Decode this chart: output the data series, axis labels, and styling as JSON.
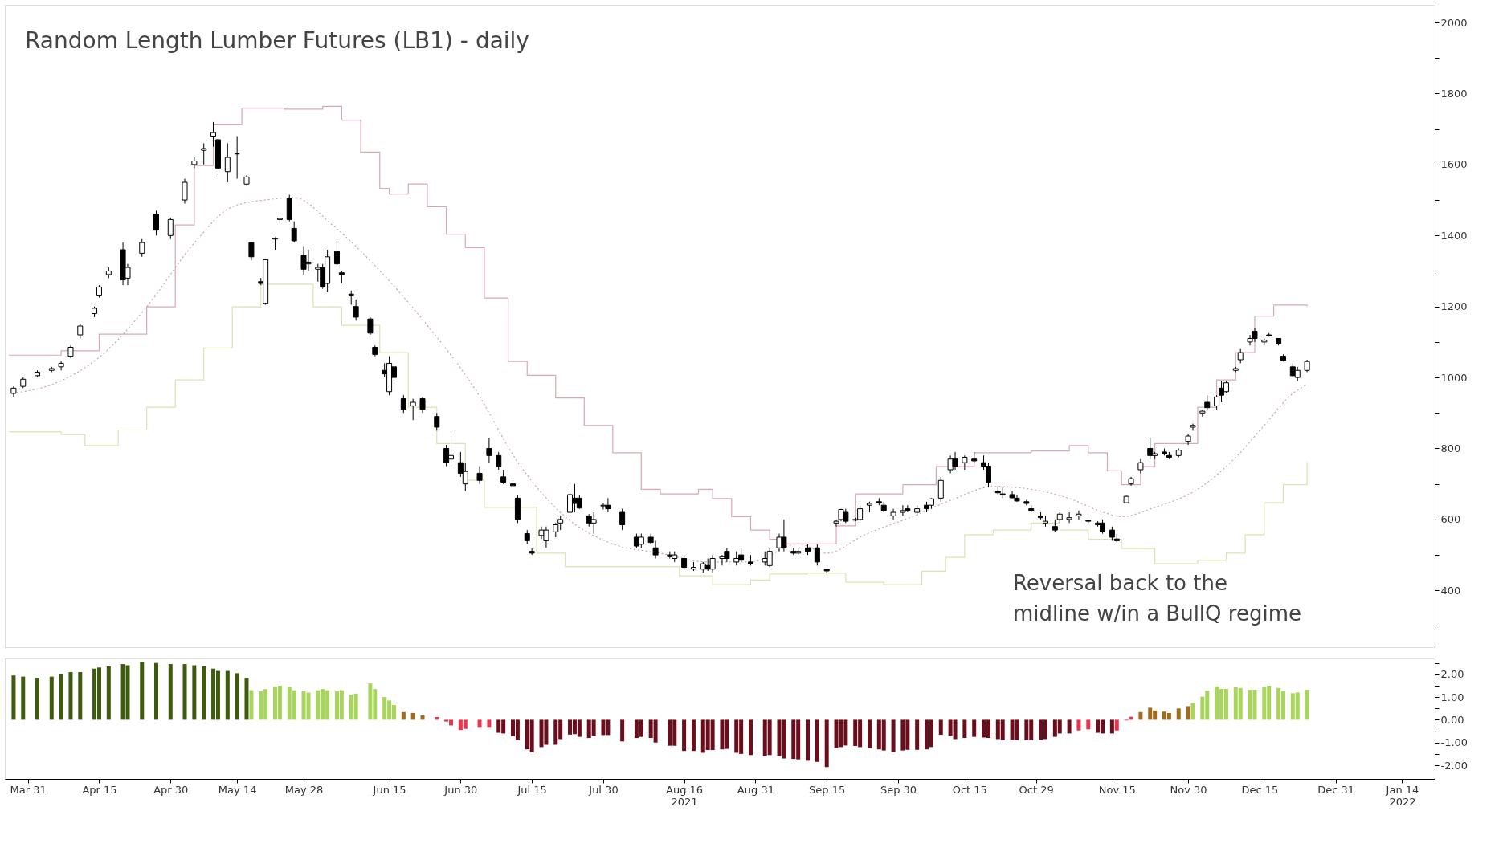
{
  "chart_data": [
    {
      "type": "candlestick",
      "title": "Random Length Lumber Futures (LB1) - daily",
      "annotations": [
        "Reversal back to the\nmidline w/in a BullQ regime"
      ],
      "x": [
        "2021-03-28",
        "2021-03-30",
        "2021-04-02",
        "2021-04-05",
        "2021-04-07",
        "2021-04-09",
        "2021-04-11",
        "2021-04-14",
        "2021-04-15",
        "2021-04-17",
        "2021-04-20",
        "2021-04-21",
        "2021-04-24",
        "2021-04-27",
        "2021-04-30",
        "2021-05-03",
        "2021-05-05",
        "2021-05-07",
        "2021-05-09",
        "2021-05-10",
        "2021-05-12",
        "2021-05-14",
        "2021-05-16",
        "2021-05-17",
        "2021-05-19",
        "2021-05-20",
        "2021-05-22",
        "2021-05-23",
        "2021-05-25",
        "2021-05-26",
        "2021-05-28",
        "2021-05-29",
        "2021-05-31",
        "2021-06-01",
        "2021-06-02",
        "2021-06-04",
        "2021-06-05",
        "2021-06-07",
        "2021-06-08",
        "2021-06-11",
        "2021-06-12",
        "2021-06-14",
        "2021-06-15",
        "2021-06-16",
        "2021-06-18",
        "2021-06-20",
        "2021-06-22",
        "2021-06-25",
        "2021-06-27",
        "2021-06-28",
        "2021-06-30",
        "2021-07-01",
        "2021-07-04",
        "2021-07-06",
        "2021-07-08",
        "2021-07-09",
        "2021-07-11",
        "2021-07-12",
        "2021-07-14",
        "2021-07-15",
        "2021-07-17",
        "2021-07-18",
        "2021-07-20",
        "2021-07-21",
        "2021-07-23",
        "2021-07-24",
        "2021-07-25",
        "2021-07-27",
        "2021-07-28",
        "2021-07-30",
        "2021-07-31",
        "2021-08-03",
        "2021-08-06",
        "2021-08-07",
        "2021-08-09",
        "2021-08-10",
        "2021-08-13",
        "2021-08-14",
        "2021-08-16",
        "2021-08-18",
        "2021-08-20",
        "2021-08-21",
        "2021-08-22",
        "2021-08-24",
        "2021-08-25",
        "2021-08-27",
        "2021-08-28",
        "2021-08-30",
        "2021-09-02",
        "2021-09-03",
        "2021-09-05",
        "2021-09-06",
        "2021-09-08",
        "2021-09-09",
        "2021-09-11",
        "2021-09-13",
        "2021-09-15",
        "2021-09-17",
        "2021-09-18",
        "2021-09-19",
        "2021-09-21",
        "2021-09-22",
        "2021-09-24",
        "2021-09-26",
        "2021-09-27",
        "2021-09-29",
        "2021-10-01",
        "2021-10-02",
        "2021-10-04",
        "2021-10-06",
        "2021-10-07",
        "2021-10-09",
        "2021-10-11",
        "2021-10-12",
        "2021-10-14",
        "2021-10-16",
        "2021-10-18",
        "2021-10-19",
        "2021-10-21",
        "2021-10-22",
        "2021-10-24",
        "2021-10-25",
        "2021-10-27",
        "2021-10-28",
        "2021-10-30",
        "2021-10-31",
        "2021-11-02",
        "2021-11-03",
        "2021-11-05",
        "2021-11-07",
        "2021-11-09",
        "2021-11-11",
        "2021-11-12",
        "2021-11-14",
        "2021-11-15",
        "2021-11-17",
        "2021-11-18",
        "2021-11-20",
        "2021-11-22",
        "2021-11-23",
        "2021-11-25",
        "2021-11-26",
        "2021-11-28",
        "2021-11-30",
        "2021-12-01",
        "2021-12-03",
        "2021-12-04",
        "2021-12-06",
        "2021-12-07",
        "2021-12-08",
        "2021-12-10",
        "2021-12-11",
        "2021-12-13",
        "2021-12-14",
        "2021-12-16",
        "2021-12-17",
        "2021-12-19",
        "2021-12-20",
        "2021-12-22",
        "2021-12-23",
        "2021-12-25"
      ],
      "ohlc": [
        [
          955,
          975,
          945,
          970
        ],
        [
          975,
          1000,
          970,
          995
        ],
        [
          1005,
          1020,
          1000,
          1015
        ],
        [
          1020,
          1030,
          1015,
          1025
        ],
        [
          1030,
          1045,
          1020,
          1040
        ],
        [
          1060,
          1090,
          1055,
          1085
        ],
        [
          1120,
          1150,
          1110,
          1145
        ],
        [
          1180,
          1200,
          1170,
          1195
        ],
        [
          1230,
          1260,
          1225,
          1255
        ],
        [
          1290,
          1310,
          1280,
          1300
        ],
        [
          1360,
          1380,
          1260,
          1275
        ],
        [
          1280,
          1320,
          1260,
          1310
        ],
        [
          1350,
          1390,
          1340,
          1380
        ],
        [
          1460,
          1470,
          1400,
          1415
        ],
        [
          1400,
          1450,
          1390,
          1445
        ],
        [
          1500,
          1560,
          1490,
          1550
        ],
        [
          1600,
          1620,
          1590,
          1610
        ],
        [
          1640,
          1660,
          1600,
          1645
        ],
        [
          1680,
          1720,
          1650,
          1690
        ],
        [
          1670,
          1680,
          1570,
          1590
        ],
        [
          1580,
          1660,
          1550,
          1620
        ],
        [
          1630,
          1680,
          1560,
          1630
        ],
        [
          1545,
          1570,
          1540,
          1565
        ],
        [
          1380,
          1380,
          1330,
          1340
        ],
        [
          1270,
          1280,
          1260,
          1265
        ],
        [
          1209,
          1335,
          1205,
          1332
        ],
        [
          1390,
          1395,
          1360,
          1392
        ],
        [
          1445,
          1450,
          1435,
          1448
        ],
        [
          1505,
          1515,
          1440,
          1445
        ],
        [
          1420,
          1440,
          1380,
          1385
        ],
        [
          1345,
          1370,
          1290,
          1305
        ],
        [
          1320,
          1360,
          1300,
          1325
        ],
        [
          1305,
          1320,
          1270,
          1310
        ],
        [
          1310,
          1320,
          1250,
          1255
        ],
        [
          1265,
          1360,
          1240,
          1340
        ],
        [
          1355,
          1385,
          1310,
          1320
        ],
        [
          1295,
          1300,
          1265,
          1290
        ],
        [
          1235,
          1245,
          1205,
          1230
        ],
        [
          1200,
          1220,
          1160,
          1170
        ],
        [
          1165,
          1170,
          1120,
          1125
        ],
        [
          1085,
          1090,
          1060,
          1065
        ],
        [
          1020,
          1040,
          1000,
          1010
        ],
        [
          960,
          1060,
          950,
          1040
        ],
        [
          1030,
          1040,
          990,
          1000
        ],
        [
          940,
          950,
          900,
          910
        ],
        [
          920,
          940,
          880,
          930
        ],
        [
          940,
          945,
          900,
          910
        ],
        [
          890,
          900,
          850,
          860
        ],
        [
          800,
          810,
          750,
          760
        ],
        [
          770,
          850,
          750,
          780
        ],
        [
          760,
          790,
          720,
          730
        ],
        [
          700,
          760,
          680,
          735
        ],
        [
          730,
          750,
          700,
          710
        ],
        [
          800,
          830,
          760,
          780
        ],
        [
          780,
          790,
          740,
          750
        ],
        [
          720,
          740,
          700,
          705
        ],
        [
          700,
          710,
          690,
          695
        ],
        [
          660,
          670,
          590,
          600
        ],
        [
          560,
          570,
          530,
          540
        ],
        [
          510,
          520,
          500,
          505
        ],
        [
          555,
          580,
          545,
          570
        ],
        [
          540,
          580,
          520,
          570
        ],
        [
          565,
          590,
          550,
          585
        ],
        [
          590,
          610,
          570,
          600
        ],
        [
          620,
          700,
          610,
          670
        ],
        [
          660,
          700,
          620,
          645
        ],
        [
          660,
          670,
          630,
          632
        ],
        [
          610,
          615,
          580,
          590
        ],
        [
          590,
          620,
          560,
          600
        ],
        [
          638,
          645,
          628,
          640
        ],
        [
          640,
          660,
          620,
          630
        ],
        [
          620,
          630,
          570,
          585
        ],
        [
          550,
          560,
          520,
          525
        ],
        [
          530,
          560,
          520,
          550
        ],
        [
          550,
          560,
          530,
          535
        ],
        [
          520,
          540,
          490,
          500
        ],
        [
          500,
          510,
          490,
          495
        ],
        [
          490,
          510,
          480,
          500
        ],
        [
          490,
          500,
          460,
          465
        ],
        [
          460,
          480,
          455,
          465
        ],
        [
          460,
          480,
          450,
          475
        ],
        [
          470,
          490,
          455,
          460
        ],
        [
          460,
          500,
          450,
          490
        ],
        [
          490,
          500,
          470,
          495
        ],
        [
          510,
          520,
          480,
          490
        ],
        [
          480,
          510,
          470,
          490
        ],
        [
          500,
          520,
          480,
          485
        ],
        [
          480,
          500,
          470,
          475
        ],
        [
          480,
          510,
          470,
          490
        ],
        [
          470,
          520,
          465,
          510
        ],
        [
          520,
          560,
          510,
          550
        ],
        [
          550,
          600,
          510,
          520
        ],
        [
          510,
          520,
          500,
          505
        ],
        [
          505,
          520,
          500,
          510
        ],
        [
          520,
          530,
          500,
          510
        ],
        [
          520,
          530,
          470,
          480
        ],
        [
          460,
          462,
          450,
          455
        ],
        [
          590,
          600,
          580,
          595
        ],
        [
          600,
          630,
          595,
          628
        ],
        [
          620,
          630,
          590,
          595
        ],
        [
          598,
          605,
          595,
          600
        ],
        [
          600,
          640,
          595,
          630
        ],
        [
          640,
          650,
          620,
          645
        ],
        [
          650,
          660,
          640,
          647
        ],
        [
          640,
          650,
          620,
          625
        ],
        [
          610,
          630,
          600,
          620
        ],
        [
          620,
          640,
          610,
          625
        ],
        [
          630,
          640,
          620,
          625
        ],
        [
          620,
          640,
          610,
          630
        ],
        [
          640,
          650,
          620,
          630
        ],
        [
          640,
          660,
          630,
          658
        ],
        [
          660,
          720,
          650,
          710
        ],
        [
          740,
          780,
          730,
          770
        ],
        [
          770,
          790,
          740,
          750
        ],
        [
          760,
          780,
          740,
          775
        ],
        [
          770,
          790,
          760,
          765
        ],
        [
          760,
          780,
          740,
          750
        ],
        [
          750,
          760,
          690,
          705
        ],
        [
          680,
          690,
          670,
          675
        ],
        [
          672,
          690,
          660,
          670
        ],
        [
          670,
          680,
          660,
          661
        ],
        [
          660,
          670,
          650,
          652
        ],
        [
          650,
          655,
          640,
          645
        ],
        [
          630,
          640,
          620,
          625
        ],
        [
          610,
          620,
          600,
          605
        ],
        [
          590,
          610,
          580,
          595
        ],
        [
          580,
          600,
          565,
          570
        ],
        [
          600,
          620,
          590,
          615
        ],
        [
          600,
          620,
          590,
          605
        ],
        [
          610,
          625,
          600,
          615
        ],
        [
          597,
          600,
          590,
          595
        ],
        [
          590,
          595,
          580,
          585
        ],
        [
          590,
          600,
          560,
          565
        ],
        [
          570,
          580,
          540,
          550
        ],
        [
          545,
          560,
          535,
          540
        ],
        [
          647,
          667,
          645,
          665
        ],
        [
          700,
          720,
          695,
          715
        ],
        [
          740,
          770,
          730,
          760
        ],
        [
          800,
          830,
          770,
          780
        ],
        [
          780,
          790,
          770,
          785
        ],
        [
          790,
          800,
          780,
          785
        ],
        [
          780,
          790,
          770,
          775
        ],
        [
          780,
          800,
          775,
          795
        ],
        [
          820,
          840,
          810,
          835
        ],
        [
          860,
          870,
          850,
          865
        ],
        [
          900,
          910,
          890,
          905
        ],
        [
          930,
          950,
          910,
          915
        ],
        [
          920,
          950,
          910,
          945
        ],
        [
          970,
          990,
          930,
          950
        ],
        [
          960,
          990,
          955,
          985
        ],
        [
          1020,
          1030,
          1015,
          1025
        ],
        [
          1050,
          1080,
          1040,
          1070
        ],
        [
          1100,
          1120,
          1090,
          1110
        ],
        [
          1130,
          1140,
          1100,
          1110
        ],
        [
          1100,
          1110,
          1090,
          1105
        ],
        [
          1120,
          1125,
          1115,
          1118
        ],
        [
          1110,
          1110,
          1090,
          1095
        ],
        [
          1060,
          1065,
          1045,
          1048
        ],
        [
          1030,
          1040,
          1000,
          1005
        ],
        [
          1000,
          1030,
          990,
          1020
        ],
        [
          1020,
          1050,
          1015,
          1045
        ]
      ],
      "color": "#000000",
      "series": [
        {
          "type": "step",
          "color": "#d9a9b1",
          "line_style": "solid",
          "x": [
            "2021-03-27",
            "2021-04-07",
            "2021-04-15",
            "2021-04-25",
            "2021-05-01",
            "2021-05-05",
            "2021-05-09",
            "2021-05-15",
            "2021-05-24",
            "2021-06-01",
            "2021-06-05",
            "2021-06-09",
            "2021-06-13",
            "2021-06-15",
            "2021-06-19",
            "2021-06-23",
            "2021-06-27",
            "2021-07-01",
            "2021-07-05",
            "2021-07-10",
            "2021-07-14",
            "2021-07-20",
            "2021-07-26",
            "2021-08-01",
            "2021-08-07",
            "2021-08-11",
            "2021-08-19",
            "2021-08-22",
            "2021-08-26",
            "2021-08-30",
            "2021-09-03",
            "2021-09-05",
            "2021-09-11",
            "2021-09-15",
            "2021-09-17",
            "2021-09-21",
            "2021-10-01",
            "2021-10-08",
            "2021-10-16",
            "2021-10-28",
            "2021-11-05",
            "2021-11-09",
            "2021-11-13",
            "2021-11-16",
            "2021-11-20",
            "2021-11-23",
            "2021-12-02",
            "2021-12-06",
            "2021-12-10",
            "2021-12-14",
            "2021-12-18",
            "2021-12-25"
          ],
          "values": [
            1063,
            1075,
            1122,
            1199,
            1430,
            1597,
            1712,
            1759,
            1756,
            1764,
            1725,
            1635,
            1533,
            1517,
            1545,
            1481,
            1404,
            1366,
            1224,
            1045,
            1006,
            942,
            865,
            788,
            685,
            672,
            685,
            659,
            608,
            570,
            544,
            531,
            531,
            531,
            582,
            672,
            698,
            749,
            788,
            793,
            808,
            788,
            737,
            698,
            749,
            814,
            916,
            993,
            1070,
            1173,
            1204,
            1200
          ]
        },
        {
          "type": "line",
          "color": "#c9a3ab",
          "line_style": "dotted",
          "x": [
            "2021-03-27",
            "2021-04-05",
            "2021-04-15",
            "2021-04-25",
            "2021-05-05",
            "2021-05-13",
            "2021-05-21",
            "2021-05-26",
            "2021-06-03",
            "2021-06-13",
            "2021-06-23",
            "2021-07-03",
            "2021-07-12",
            "2021-07-22",
            "2021-08-01",
            "2021-08-11",
            "2021-08-21",
            "2021-08-30",
            "2021-09-09",
            "2021-09-15",
            "2021-09-23",
            "2021-10-03",
            "2021-10-12",
            "2021-10-20",
            "2021-10-28",
            "2021-11-05",
            "2021-11-12",
            "2021-11-16",
            "2021-11-23",
            "2021-12-02",
            "2021-12-10",
            "2021-12-16",
            "2021-12-22",
            "2021-12-25"
          ],
          "values": [
            955,
            980,
            1057,
            1199,
            1379,
            1481,
            1502,
            1507,
            1430,
            1301,
            1147,
            968,
            762,
            608,
            531,
            505,
            480,
            480,
            531,
            505,
            557,
            608,
            659,
            693,
            685,
            659,
            621,
            608,
            634,
            685,
            775,
            865,
            955,
            980
          ]
        },
        {
          "type": "step",
          "color": "#dbe3b4",
          "line_style": "solid",
          "x": [
            "2021-03-27",
            "2021-04-07",
            "2021-04-12",
            "2021-04-19",
            "2021-04-25",
            "2021-05-01",
            "2021-05-07",
            "2021-05-13",
            "2021-05-19",
            "2021-05-24",
            "2021-05-30",
            "2021-06-05",
            "2021-06-13",
            "2021-06-19",
            "2021-06-25",
            "2021-07-01",
            "2021-07-05",
            "2021-07-10",
            "2021-07-16",
            "2021-07-22",
            "2021-07-30",
            "2021-08-07",
            "2021-08-15",
            "2021-08-22",
            "2021-08-30",
            "2021-09-03",
            "2021-09-11",
            "2021-09-15",
            "2021-09-19",
            "2021-09-27",
            "2021-10-05",
            "2021-10-10",
            "2021-10-14",
            "2021-10-20",
            "2021-10-28",
            "2021-11-03",
            "2021-11-09",
            "2021-11-16",
            "2021-11-23",
            "2021-12-02",
            "2021-12-08",
            "2021-12-12",
            "2021-12-16",
            "2021-12-20",
            "2021-12-25"
          ],
          "values": [
            847,
            839,
            808,
            852,
            916,
            993,
            1083,
            1199,
            1263,
            1263,
            1199,
            1147,
            1070,
            916,
            814,
            711,
            634,
            634,
            505,
            467,
            467,
            467,
            441,
            416,
            429,
            446,
            449,
            449,
            423,
            416,
            454,
            493,
            557,
            570,
            590,
            570,
            544,
            518,
            475,
            485,
            505,
            557,
            647,
            698,
            762
          ]
        }
      ],
      "xlim": [
        "2021-03-27",
        "2022-01-20"
      ],
      "ylim": [
        240,
        2050
      ],
      "yticks": [
        {
          "value": 300,
          "label": null
        },
        400,
        {
          "value": 500,
          "label": null
        },
        600,
        {
          "value": 700,
          "label": null
        },
        800,
        {
          "value": 900,
          "label": null
        },
        1000,
        {
          "value": 1100,
          "label": null
        },
        1200,
        {
          "value": 1300,
          "label": null
        },
        1400,
        {
          "value": 1500,
          "label": null
        },
        1600,
        {
          "value": 1700,
          "label": null
        },
        1800,
        {
          "value": 1900,
          "label": null
        },
        2000
      ],
      "tick_labels": "y",
      "grid": false
    },
    {
      "type": "bar",
      "x": [
        "2021-03-28",
        "2021-03-30",
        "2021-04-02",
        "2021-04-05",
        "2021-04-07",
        "2021-04-09",
        "2021-04-11",
        "2021-04-14",
        "2021-04-15",
        "2021-04-17",
        "2021-04-20",
        "2021-04-21",
        "2021-04-24",
        "2021-04-27",
        "2021-04-30",
        "2021-05-03",
        "2021-05-05",
        "2021-05-07",
        "2021-05-09",
        "2021-05-10",
        "2021-05-12",
        "2021-05-14",
        "2021-05-16",
        "2021-05-17",
        "2021-05-19",
        "2021-05-20",
        "2021-05-22",
        "2021-05-23",
        "2021-05-25",
        "2021-05-26",
        "2021-05-28",
        "2021-05-29",
        "2021-05-31",
        "2021-06-01",
        "2021-06-02",
        "2021-06-04",
        "2021-06-05",
        "2021-06-07",
        "2021-06-08",
        "2021-06-11",
        "2021-06-12",
        "2021-06-14",
        "2021-06-15",
        "2021-06-16",
        "2021-06-18",
        "2021-06-20",
        "2021-06-22",
        "2021-06-25",
        "2021-06-27",
        "2021-06-28",
        "2021-06-30",
        "2021-07-01",
        "2021-07-04",
        "2021-07-06",
        "2021-07-08",
        "2021-07-09",
        "2021-07-11",
        "2021-07-12",
        "2021-07-14",
        "2021-07-15",
        "2021-07-17",
        "2021-07-18",
        "2021-07-20",
        "2021-07-21",
        "2021-07-23",
        "2021-07-24",
        "2021-07-25",
        "2021-07-27",
        "2021-07-28",
        "2021-07-30",
        "2021-07-31",
        "2021-08-03",
        "2021-08-06",
        "2021-08-07",
        "2021-08-09",
        "2021-08-10",
        "2021-08-13",
        "2021-08-14",
        "2021-08-16",
        "2021-08-18",
        "2021-08-20",
        "2021-08-21",
        "2021-08-22",
        "2021-08-24",
        "2021-08-25",
        "2021-08-27",
        "2021-08-28",
        "2021-08-30",
        "2021-09-02",
        "2021-09-03",
        "2021-09-05",
        "2021-09-06",
        "2021-09-08",
        "2021-09-09",
        "2021-09-11",
        "2021-09-13",
        "2021-09-15",
        "2021-09-17",
        "2021-09-18",
        "2021-09-19",
        "2021-09-21",
        "2021-09-22",
        "2021-09-24",
        "2021-09-26",
        "2021-09-27",
        "2021-09-29",
        "2021-10-01",
        "2021-10-02",
        "2021-10-04",
        "2021-10-06",
        "2021-10-07",
        "2021-10-09",
        "2021-10-11",
        "2021-10-12",
        "2021-10-14",
        "2021-10-16",
        "2021-10-18",
        "2021-10-19",
        "2021-10-21",
        "2021-10-22",
        "2021-10-24",
        "2021-10-25",
        "2021-10-27",
        "2021-10-28",
        "2021-10-30",
        "2021-10-31",
        "2021-11-02",
        "2021-11-03",
        "2021-11-05",
        "2021-11-07",
        "2021-11-09",
        "2021-11-11",
        "2021-11-12",
        "2021-11-14",
        "2021-11-15",
        "2021-11-17",
        "2021-11-18",
        "2021-11-20",
        "2021-11-22",
        "2021-11-23",
        "2021-11-25",
        "2021-11-26",
        "2021-11-28",
        "2021-11-30",
        "2021-12-01",
        "2021-12-03",
        "2021-12-04",
        "2021-12-06",
        "2021-12-07",
        "2021-12-08",
        "2021-12-10",
        "2021-12-11",
        "2021-12-13",
        "2021-12-14",
        "2021-12-16",
        "2021-12-17",
        "2021-12-19",
        "2021-12-20",
        "2021-12-22",
        "2021-12-23",
        "2021-12-25"
      ],
      "values": [
        1.95,
        1.9,
        1.85,
        1.9,
        2.0,
        2.1,
        2.1,
        2.25,
        2.3,
        2.35,
        2.45,
        2.4,
        2.55,
        2.5,
        2.45,
        2.45,
        2.4,
        2.35,
        2.25,
        2.15,
        2.15,
        2.05,
        1.85,
        1.3,
        1.25,
        1.35,
        1.45,
        1.5,
        1.45,
        1.3,
        1.25,
        1.2,
        1.3,
        1.35,
        1.3,
        1.25,
        1.3,
        1.1,
        1.15,
        1.6,
        1.35,
        1.0,
        0.85,
        0.65,
        0.34,
        0.3,
        0.19,
        0.12,
        -0.08,
        -0.25,
        -0.45,
        -0.4,
        -0.35,
        -0.35,
        -0.57,
        -0.6,
        -0.72,
        -0.9,
        -1.3,
        -1.43,
        -1.2,
        -1.1,
        -1.1,
        -0.85,
        -0.65,
        -0.63,
        -0.75,
        -0.8,
        -0.7,
        -0.67,
        -0.67,
        -0.95,
        -0.8,
        -0.75,
        -0.8,
        -1.0,
        -1.14,
        -1.14,
        -1.37,
        -1.37,
        -1.45,
        -1.33,
        -1.33,
        -1.3,
        -1.28,
        -1.45,
        -1.5,
        -1.55,
        -1.6,
        -1.55,
        -1.6,
        -1.7,
        -1.72,
        -1.74,
        -1.8,
        -1.85,
        -2.08,
        -1.25,
        -1.2,
        -1.13,
        -1.15,
        -1.2,
        -1.25,
        -1.3,
        -1.35,
        -1.42,
        -1.35,
        -1.32,
        -1.32,
        -1.3,
        -1.2,
        -0.66,
        -0.7,
        -0.85,
        -0.8,
        -0.75,
        -0.78,
        -0.8,
        -0.85,
        -0.9,
        -0.9,
        -0.9,
        -0.9,
        -0.9,
        -0.88,
        -0.85,
        -0.75,
        -0.6,
        -0.6,
        -0.47,
        -0.42,
        -0.57,
        -0.6,
        -0.6,
        -0.47,
        -0.03,
        0.13,
        0.34,
        0.53,
        0.41,
        0.36,
        0.3,
        0.5,
        0.6,
        0.75,
        1.02,
        1.28,
        1.47,
        1.36,
        1.36,
        1.43,
        1.4,
        1.32,
        1.32,
        1.45,
        1.5,
        1.4,
        1.26,
        1.17,
        1.2,
        1.32
      ],
      "colors": [
        "#3d5a0e",
        "#3d5a0e",
        "#3d5a0e",
        "#3d5a0e",
        "#3d5a0e",
        "#3d5a0e",
        "#3d5a0e",
        "#3d5a0e",
        "#3d5a0e",
        "#3d5a0e",
        "#3d5a0e",
        "#3d5a0e",
        "#3d5a0e",
        "#3d5a0e",
        "#3d5a0e",
        "#3d5a0e",
        "#3d5a0e",
        "#3d5a0e",
        "#3d5a0e",
        "#3d5a0e",
        "#3d5a0e",
        "#3d5a0e",
        "#3d5a0e",
        "#a8d65c",
        "#a8d65c",
        "#a8d65c",
        "#a8d65c",
        "#a8d65c",
        "#a8d65c",
        "#a8d65c",
        "#a8d65c",
        "#a8d65c",
        "#a8d65c",
        "#a8d65c",
        "#a8d65c",
        "#a8d65c",
        "#a8d65c",
        "#a8d65c",
        "#a8d65c",
        "#a8d65c",
        "#a8d65c",
        "#a8d65c",
        "#a8d65c",
        "#a8d65c",
        "#a36a1e",
        "#a36a1e",
        "#a36a1e",
        "#e8354e",
        "#e8354e",
        "#e8354e",
        "#e8354e",
        "#e8354e",
        "#e8354e",
        "#e8354e",
        "#6a0e1e",
        "#6a0e1e",
        "#6a0e1e",
        "#6a0e1e",
        "#6a0e1e",
        "#6a0e1e",
        "#6a0e1e",
        "#6a0e1e",
        "#6a0e1e",
        "#6a0e1e",
        "#6a0e1e",
        "#6a0e1e",
        "#6a0e1e",
        "#6a0e1e",
        "#6a0e1e",
        "#6a0e1e",
        "#6a0e1e",
        "#6a0e1e",
        "#6a0e1e",
        "#6a0e1e",
        "#6a0e1e",
        "#6a0e1e",
        "#6a0e1e",
        "#6a0e1e",
        "#6a0e1e",
        "#6a0e1e",
        "#6a0e1e",
        "#6a0e1e",
        "#6a0e1e",
        "#6a0e1e",
        "#6a0e1e",
        "#6a0e1e",
        "#6a0e1e",
        "#6a0e1e",
        "#6a0e1e",
        "#6a0e1e",
        "#6a0e1e",
        "#6a0e1e",
        "#6a0e1e",
        "#6a0e1e",
        "#6a0e1e",
        "#6a0e1e",
        "#6a0e1e",
        "#6a0e1e",
        "#6a0e1e",
        "#6a0e1e",
        "#6a0e1e",
        "#6a0e1e",
        "#6a0e1e",
        "#6a0e1e",
        "#6a0e1e",
        "#6a0e1e",
        "#6a0e1e",
        "#6a0e1e",
        "#6a0e1e",
        "#6a0e1e",
        "#6a0e1e",
        "#6a0e1e",
        "#6a0e1e",
        "#6a0e1e",
        "#6a0e1e",
        "#6a0e1e",
        "#6a0e1e",
        "#6a0e1e",
        "#6a0e1e",
        "#6a0e1e",
        "#6a0e1e",
        "#6a0e1e",
        "#6a0e1e",
        "#6a0e1e",
        "#6a0e1e",
        "#6a0e1e",
        "#6a0e1e",
        "#6a0e1e",
        "#6a0e1e",
        "#e8354e",
        "#e8354e",
        "#6a0e1e",
        "#6a0e1e",
        "#6a0e1e",
        "#e8354e",
        "#e8354e",
        "#e8354e",
        "#a36a1e",
        "#a36a1e",
        "#a36a1e",
        "#a36a1e",
        "#a36a1e",
        "#a36a1e",
        "#a36a1e",
        "#a8d65c",
        "#a8d65c",
        "#a8d65c",
        "#a8d65c",
        "#a8d65c",
        "#a8d65c",
        "#a8d65c",
        "#a8d65c",
        "#a8d65c",
        "#a8d65c",
        "#a8d65c",
        "#a8d65c",
        "#a8d65c",
        "#a8d65c",
        "#a8d65c",
        "#a8d65c",
        "#a8d65c"
      ],
      "xlim": [
        "2021-03-27",
        "2022-01-20"
      ],
      "xticks": [
        {
          "value": "2021-03-31",
          "label": "Mar 31"
        },
        {
          "value": "2021-04-15",
          "label": "Apr 15"
        },
        {
          "value": "2021-04-30",
          "label": "Apr 30"
        },
        {
          "value": "2021-05-14",
          "label": "May 14"
        },
        {
          "value": "2021-05-28",
          "label": "May 28"
        },
        {
          "value": "2021-06-15",
          "label": "Jun 15"
        },
        {
          "value": "2021-06-30",
          "label": "Jun 30"
        },
        {
          "value": "2021-07-15",
          "label": "Jul 15"
        },
        {
          "value": "2021-07-30",
          "label": "Jul 30"
        },
        {
          "value": "2021-08-16",
          "label": "Aug 16\n2021"
        },
        {
          "value": "2021-08-31",
          "label": "Aug 31"
        },
        {
          "value": "2021-09-15",
          "label": "Sep 15"
        },
        {
          "value": "2021-09-30",
          "label": "Sep 30"
        },
        {
          "value": "2021-10-15",
          "label": "Oct 15"
        },
        {
          "value": "2021-10-29",
          "label": "Oct 29"
        },
        {
          "value": "2021-11-15",
          "label": "Nov 15"
        },
        {
          "value": "2021-11-30",
          "label": "Nov 30"
        },
        {
          "value": "2021-12-15",
          "label": "Dec 15"
        },
        {
          "value": "2021-12-31",
          "label": "Dec 31"
        },
        {
          "value": "2022-01-14",
          "label": "Jan 14\n2022"
        }
      ],
      "ylim": [
        -2.6,
        2.7
      ],
      "yticks": [
        {
          "value": -2,
          "label": "-2.00"
        },
        {
          "value": -1.5,
          "label": null
        },
        {
          "value": -1,
          "label": "-1.00"
        },
        {
          "value": -0.5,
          "label": null
        },
        {
          "value": 0,
          "label": "0.00"
        },
        {
          "value": 0.5,
          "label": null
        },
        {
          "value": 1,
          "label": "1.00"
        },
        {
          "value": 1.5,
          "label": null
        },
        {
          "value": 2,
          "label": "2.00"
        },
        {
          "value": 2.5,
          "label": null
        }
      ],
      "grid": false
    }
  ]
}
